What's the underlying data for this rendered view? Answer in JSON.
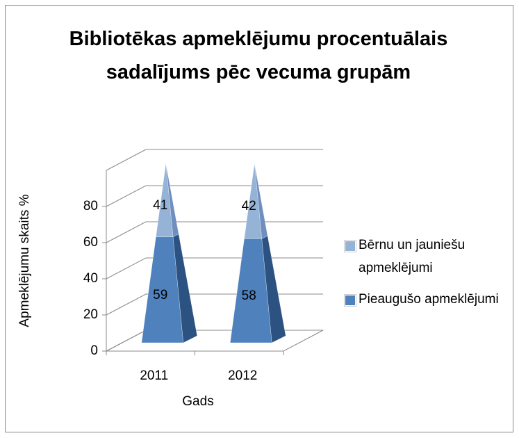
{
  "chart_data": {
    "type": "pyramid3d-stacked",
    "title": "Bibliotēkas apmeklējumu procentuālais sadalījums pēc vecuma grupām",
    "x_label": "Gads",
    "y_label": "Apmeklējumu skaits %",
    "categories": [
      "2011",
      "2012"
    ],
    "series": [
      {
        "name": "Pieaugušo apmeklējumi",
        "color": "#4f81bd",
        "values": [
          59,
          58
        ]
      },
      {
        "name": "Bērnu un jauniešu apmeklējumi",
        "color": "#95b3d7",
        "values": [
          41,
          42
        ]
      }
    ],
    "ylim": [
      0,
      100
    ],
    "yticks": [
      0,
      20,
      40,
      60,
      80
    ],
    "grid": true,
    "legend": "right"
  }
}
